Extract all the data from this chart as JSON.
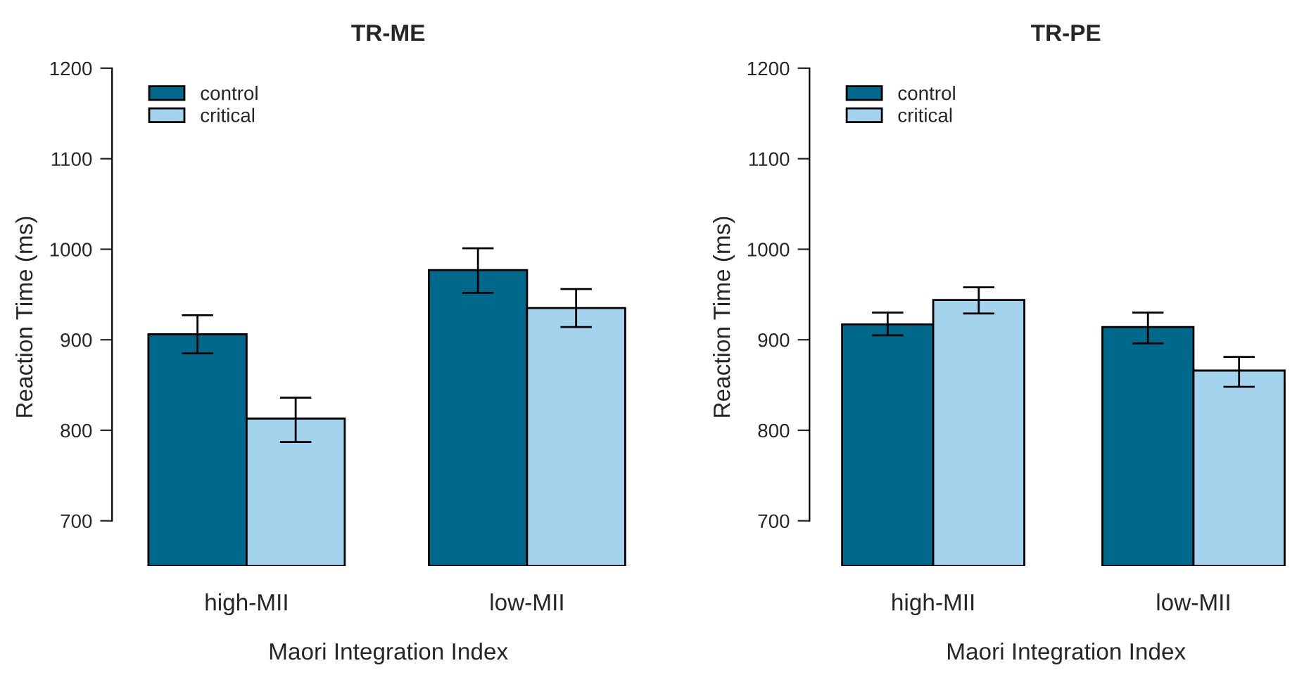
{
  "chart_data": [
    {
      "type": "bar",
      "title": "TR-ME",
      "xlabel": "Maori Integration Index",
      "ylabel": "Reaction Time (ms)",
      "categories": [
        "high-MII",
        "low-MII"
      ],
      "ylim": [
        650,
        1200
      ],
      "yticks": [
        700,
        800,
        900,
        1000,
        1100,
        1200
      ],
      "legend": "top left",
      "series": [
        {
          "name": "control",
          "color": "#00688b",
          "values": [
            906,
            977
          ],
          "errors": [
            [
              885,
              927
            ],
            [
              952,
              1001
            ]
          ]
        },
        {
          "name": "critical",
          "color": "#a4d3ee",
          "values": [
            813,
            935
          ],
          "errors": [
            [
              787,
              836
            ],
            [
              914,
              956
            ]
          ]
        }
      ]
    },
    {
      "type": "bar",
      "title": "TR-PE",
      "xlabel": "Maori Integration Index",
      "ylabel": "Reaction Time (ms)",
      "categories": [
        "high-MII",
        "low-MII"
      ],
      "ylim": [
        650,
        1200
      ],
      "yticks": [
        700,
        800,
        900,
        1000,
        1100,
        1200
      ],
      "legend": "top left",
      "series": [
        {
          "name": "control",
          "color": "#00688b",
          "values": [
            917,
            914
          ],
          "errors": [
            [
              905,
              930
            ],
            [
              896,
              930
            ]
          ]
        },
        {
          "name": "critical",
          "color": "#a4d3ee",
          "values": [
            944,
            866
          ],
          "errors": [
            [
              929,
              958
            ],
            [
              848,
              881
            ]
          ]
        }
      ]
    }
  ]
}
